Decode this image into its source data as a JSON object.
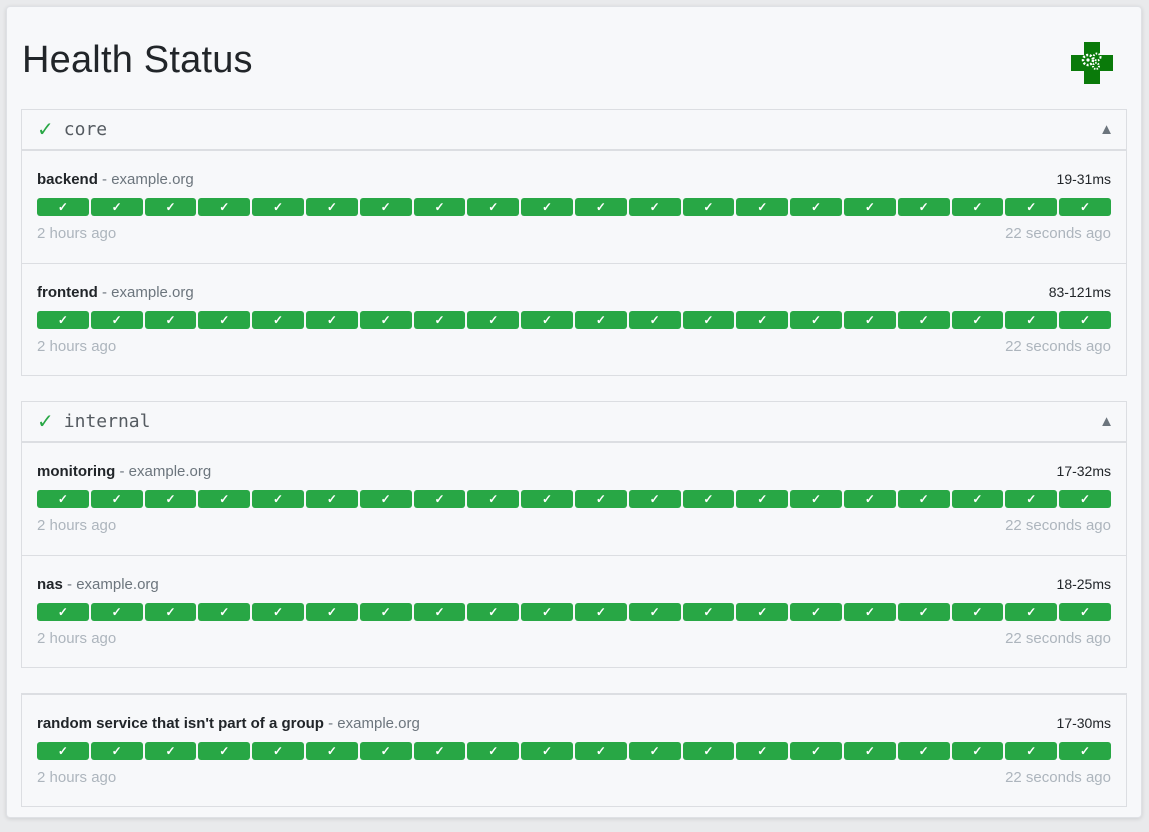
{
  "page": {
    "title": "Health Status",
    "logo_icon": "medical-cross-gears-icon"
  },
  "colors": {
    "success": "#28a745",
    "logo": "#0a7a0a"
  },
  "groups": [
    {
      "name": "core",
      "status_icon": "✓",
      "toggle_icon": "▲",
      "services": [
        {
          "name": "backend",
          "host": "example.org",
          "response_range": "19-31ms",
          "oldest": "2 hours ago",
          "newest": "22 seconds ago",
          "results": [
            "✓",
            "✓",
            "✓",
            "✓",
            "✓",
            "✓",
            "✓",
            "✓",
            "✓",
            "✓",
            "✓",
            "✓",
            "✓",
            "✓",
            "✓",
            "✓",
            "✓",
            "✓",
            "✓",
            "✓"
          ]
        },
        {
          "name": "frontend",
          "host": "example.org",
          "response_range": "83-121ms",
          "oldest": "2 hours ago",
          "newest": "22 seconds ago",
          "results": [
            "✓",
            "✓",
            "✓",
            "✓",
            "✓",
            "✓",
            "✓",
            "✓",
            "✓",
            "✓",
            "✓",
            "✓",
            "✓",
            "✓",
            "✓",
            "✓",
            "✓",
            "✓",
            "✓",
            "✓"
          ]
        }
      ]
    },
    {
      "name": "internal",
      "status_icon": "✓",
      "toggle_icon": "▲",
      "services": [
        {
          "name": "monitoring",
          "host": "example.org",
          "response_range": "17-32ms",
          "oldest": "2 hours ago",
          "newest": "22 seconds ago",
          "results": [
            "✓",
            "✓",
            "✓",
            "✓",
            "✓",
            "✓",
            "✓",
            "✓",
            "✓",
            "✓",
            "✓",
            "✓",
            "✓",
            "✓",
            "✓",
            "✓",
            "✓",
            "✓",
            "✓",
            "✓"
          ]
        },
        {
          "name": "nas",
          "host": "example.org",
          "response_range": "18-25ms",
          "oldest": "2 hours ago",
          "newest": "22 seconds ago",
          "results": [
            "✓",
            "✓",
            "✓",
            "✓",
            "✓",
            "✓",
            "✓",
            "✓",
            "✓",
            "✓",
            "✓",
            "✓",
            "✓",
            "✓",
            "✓",
            "✓",
            "✓",
            "✓",
            "✓",
            "✓"
          ]
        }
      ]
    },
    {
      "name": "",
      "status_icon": "",
      "toggle_icon": "",
      "services": [
        {
          "name": "random service that isn't part of a group",
          "host": "example.org",
          "response_range": "17-30ms",
          "oldest": "2 hours ago",
          "newest": "22 seconds ago",
          "results": [
            "✓",
            "✓",
            "✓",
            "✓",
            "✓",
            "✓",
            "✓",
            "✓",
            "✓",
            "✓",
            "✓",
            "✓",
            "✓",
            "✓",
            "✓",
            "✓",
            "✓",
            "✓",
            "✓",
            "✓"
          ]
        }
      ]
    }
  ],
  "separator": " - "
}
